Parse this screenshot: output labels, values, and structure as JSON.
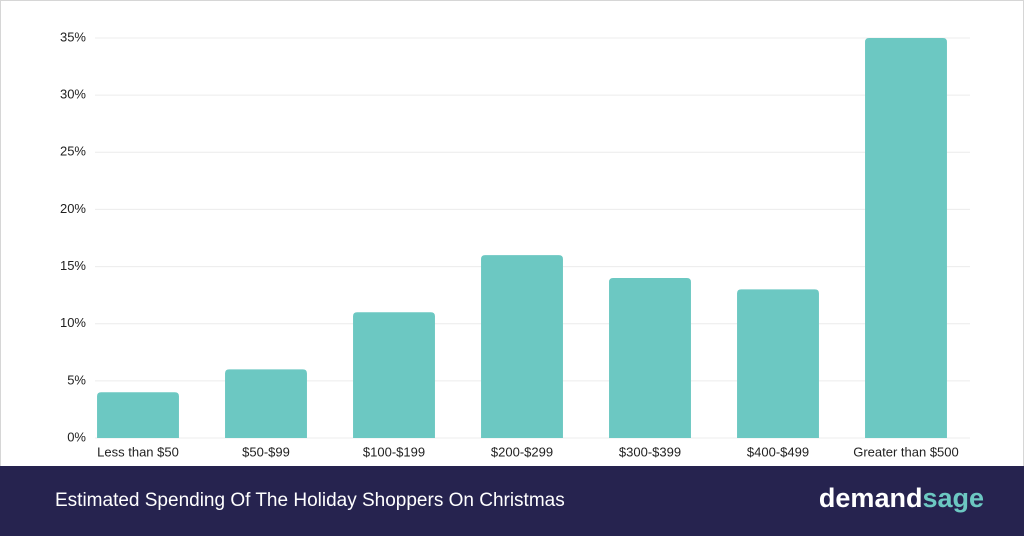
{
  "chart_data": {
    "type": "bar",
    "title": "Estimated Spending Of The Holiday Shoppers On Christmas",
    "brand": {
      "main": "demand",
      "accent": "sage"
    },
    "categories": [
      "Less than $50",
      "$50-$99",
      "$100-$199",
      "$200-$299",
      "$300-$399",
      "$400-$499",
      "Greater than $500"
    ],
    "values": [
      4,
      6,
      11,
      16,
      14,
      13,
      35
    ],
    "color": "#6cc8c2",
    "ylim": [
      0,
      35
    ],
    "yticks": [
      {
        "value": 0,
        "label": "0%"
      },
      {
        "value": 5,
        "label": "5%"
      },
      {
        "value": 10,
        "label": "10%"
      },
      {
        "value": 15,
        "label": "15%"
      },
      {
        "value": 20,
        "label": "20%"
      },
      {
        "value": 25,
        "label": "25%"
      },
      {
        "value": 30,
        "label": "30%"
      },
      {
        "value": 35,
        "label": "35%"
      }
    ],
    "grid": true
  }
}
